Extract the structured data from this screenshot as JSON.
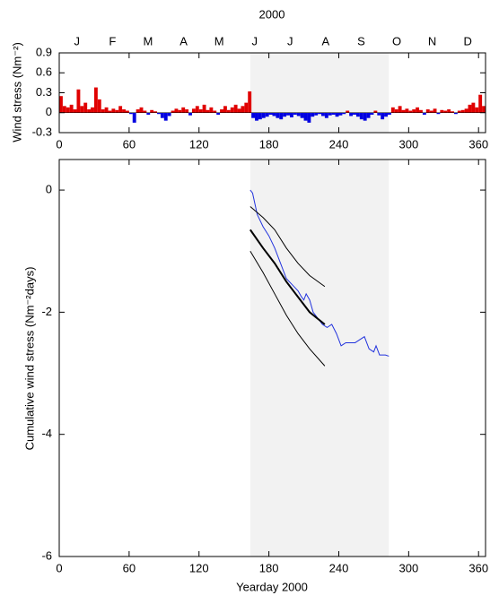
{
  "chart_data": [
    {
      "type": "bar",
      "title": "2000",
      "months": [
        "J",
        "F",
        "M",
        "A",
        "M",
        "J",
        "J",
        "A",
        "S",
        "O",
        "N",
        "D"
      ],
      "y_label": "Wind stress (Nm⁻²)",
      "xlim": [
        0,
        366
      ],
      "xticks": [
        0,
        60,
        120,
        180,
        240,
        300,
        360
      ],
      "ylim": [
        -0.3,
        0.9
      ],
      "yticks": [
        -0.3,
        0,
        0.3,
        0.6,
        0.9
      ],
      "highlight": [
        164,
        283
      ],
      "highlight_color": "#f2f2f2",
      "positive_color": "#e00000",
      "negative_color": "#0000e0",
      "x": [
        0,
        3,
        6,
        9,
        12,
        15,
        18,
        21,
        24,
        27,
        30,
        33,
        36,
        39,
        42,
        45,
        48,
        51,
        54,
        57,
        60,
        63,
        66,
        69,
        72,
        75,
        78,
        81,
        84,
        87,
        90,
        93,
        96,
        99,
        102,
        105,
        108,
        111,
        114,
        117,
        120,
        123,
        126,
        129,
        132,
        135,
        138,
        141,
        144,
        147,
        150,
        153,
        156,
        159,
        162,
        165,
        168,
        171,
        174,
        177,
        180,
        183,
        186,
        189,
        192,
        195,
        198,
        201,
        204,
        207,
        210,
        213,
        216,
        219,
        222,
        225,
        228,
        231,
        234,
        237,
        240,
        243,
        246,
        249,
        252,
        255,
        258,
        261,
        264,
        267,
        270,
        273,
        276,
        279,
        282,
        285,
        288,
        291,
        294,
        297,
        300,
        303,
        306,
        309,
        312,
        315,
        318,
        321,
        324,
        327,
        330,
        333,
        336,
        339,
        342,
        345,
        348,
        351,
        354,
        357,
        360,
        363
      ],
      "values": [
        0.25,
        0.1,
        0.08,
        0.12,
        0.05,
        0.35,
        0.1,
        0.15,
        0.05,
        0.08,
        0.38,
        0.2,
        0.05,
        0.08,
        0.03,
        0.06,
        0.04,
        0.1,
        0.05,
        0.03,
        -0.02,
        -0.15,
        0.05,
        0.08,
        0.03,
        -0.03,
        0.04,
        0.02,
        -0.02,
        -0.08,
        -0.12,
        -0.05,
        0.03,
        0.06,
        0.04,
        0.08,
        0.05,
        -0.04,
        0.06,
        0.1,
        0.05,
        0.12,
        0.04,
        0.08,
        0.03,
        -0.03,
        0.05,
        0.1,
        0.04,
        0.08,
        0.12,
        0.06,
        0.1,
        0.15,
        0.32,
        -0.08,
        -0.12,
        -0.1,
        -0.08,
        -0.06,
        -0.03,
        -0.05,
        -0.08,
        -0.1,
        -0.06,
        -0.04,
        -0.07,
        -0.03,
        -0.05,
        -0.08,
        -0.12,
        -0.15,
        -0.06,
        -0.04,
        -0.02,
        -0.05,
        -0.08,
        -0.04,
        -0.03,
        -0.06,
        -0.04,
        -0.02,
        0.03,
        -0.05,
        -0.03,
        -0.06,
        -0.1,
        -0.12,
        -0.08,
        -0.03,
        0.03,
        -0.04,
        -0.1,
        -0.06,
        -0.03,
        0.08,
        0.05,
        0.1,
        0.04,
        0.06,
        0.03,
        0.05,
        0.08,
        0.04,
        -0.03,
        0.05,
        0.03,
        0.06,
        -0.02,
        0.04,
        0.03,
        0.05,
        0.02,
        -0.02,
        0.03,
        0.04,
        0.06,
        0.12,
        0.15,
        0.08,
        0.27,
        0.1
      ]
    },
    {
      "type": "line",
      "x_label": "Yearday 2000",
      "y_label": "Cumulative wind stress (Nm⁻²days)",
      "xlim": [
        0,
        366
      ],
      "xticks": [
        0,
        60,
        120,
        180,
        240,
        300,
        360
      ],
      "ylim": [
        -6,
        0.5
      ],
      "yticks": [
        -6,
        -4,
        -2,
        0
      ],
      "highlight": [
        164,
        283
      ],
      "highlight_color": "#f2f2f2",
      "series": [
        {
          "color": "#2233dd",
          "line_width": 1,
          "x": [
            164,
            166,
            170,
            175,
            180,
            185,
            190,
            195,
            200,
            205,
            208,
            210,
            212,
            215,
            218,
            222,
            226,
            230,
            234,
            238,
            242,
            246,
            250,
            254,
            258,
            262,
            266,
            270,
            272,
            275,
            280,
            283
          ],
          "values": [
            0,
            -0.05,
            -0.4,
            -0.6,
            -0.75,
            -0.95,
            -1.2,
            -1.45,
            -1.55,
            -1.65,
            -1.75,
            -1.8,
            -1.7,
            -1.8,
            -2.0,
            -2.1,
            -2.2,
            -2.25,
            -2.2,
            -2.35,
            -2.55,
            -2.5,
            -2.5,
            -2.5,
            -2.45,
            -2.4,
            -2.6,
            -2.65,
            -2.55,
            -2.7,
            -2.7,
            -2.72
          ]
        },
        {
          "color": "#000000",
          "line_width": 2,
          "x": [
            164,
            175,
            185,
            195,
            205,
            215,
            228
          ],
          "values": [
            -0.65,
            -0.95,
            -1.2,
            -1.5,
            -1.75,
            -2.0,
            -2.2
          ]
        },
        {
          "color": "#000000",
          "line_width": 1,
          "x": [
            164,
            175,
            185,
            195,
            205,
            215,
            228
          ],
          "values": [
            -0.27,
            -0.45,
            -0.65,
            -0.95,
            -1.2,
            -1.4,
            -1.58
          ]
        },
        {
          "color": "#000000",
          "line_width": 1,
          "x": [
            164,
            175,
            185,
            195,
            205,
            215,
            228
          ],
          "values": [
            -1.0,
            -1.35,
            -1.7,
            -2.05,
            -2.35,
            -2.6,
            -2.88
          ]
        }
      ]
    }
  ]
}
